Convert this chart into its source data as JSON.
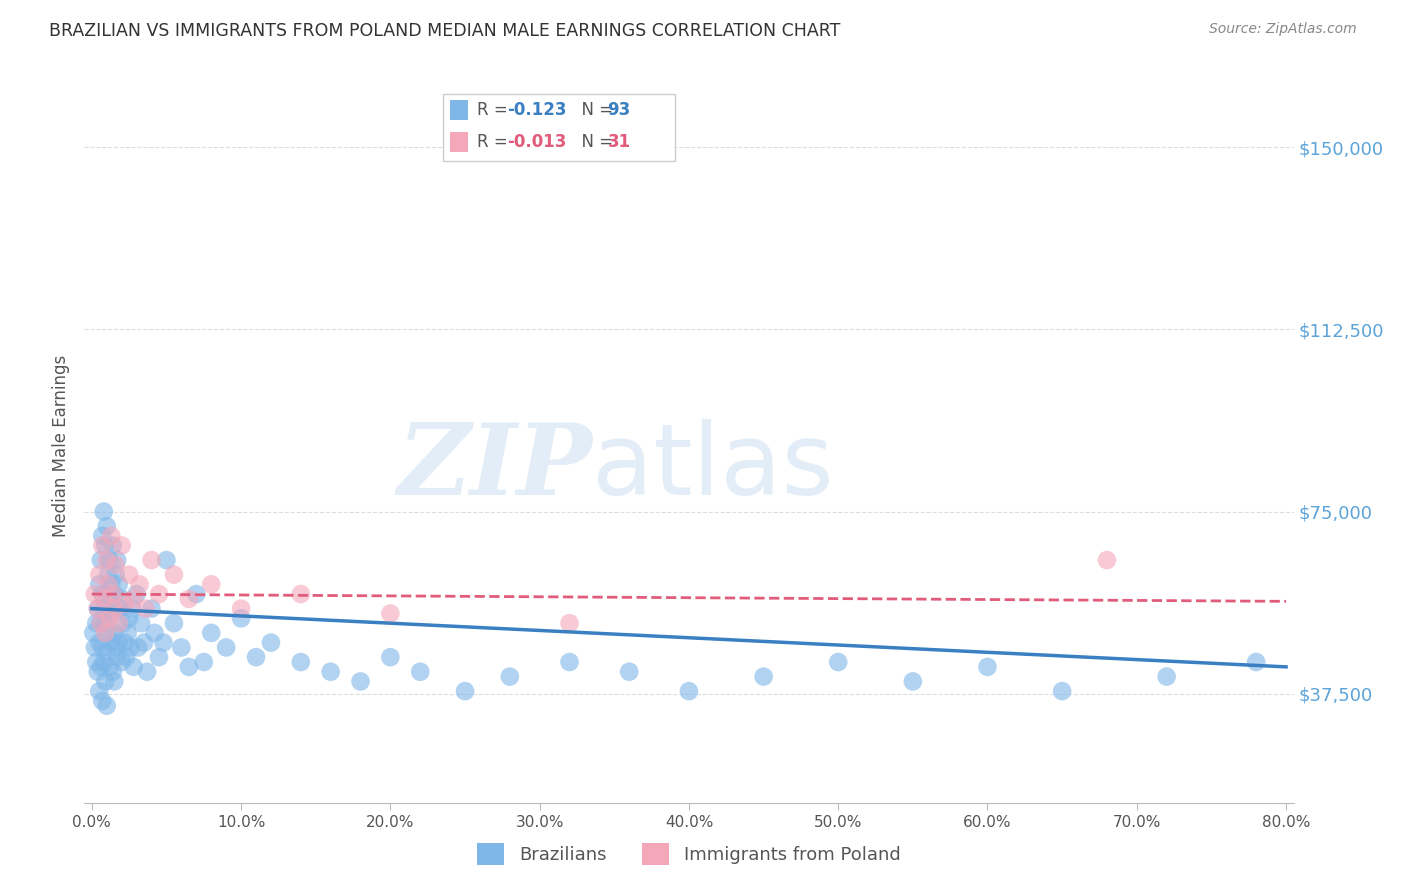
{
  "title": "BRAZILIAN VS IMMIGRANTS FROM POLAND MEDIAN MALE EARNINGS CORRELATION CHART",
  "source": "Source: ZipAtlas.com",
  "ylabel": "Median Male Earnings",
  "ytick_labels": [
    "$37,500",
    "$75,000",
    "$112,500",
    "$150,000"
  ],
  "ytick_vals": [
    37500,
    75000,
    112500,
    150000
  ],
  "ylim": [
    15000,
    162000
  ],
  "xlim": [
    -0.005,
    0.805
  ],
  "blue_color": "#7EB6E8",
  "pink_color": "#F4A7B9",
  "blue_line_color": "#3A7FC1",
  "pink_line_color": "#E05C7A",
  "legend_blue_label": "Brazilians",
  "legend_pink_label": "Immigrants from Poland",
  "r_blue": "-0.123",
  "n_blue": "93",
  "r_pink": "-0.013",
  "n_pink": "31",
  "watermark_zip": "ZIP",
  "watermark_atlas": "atlas",
  "background_color": "#FFFFFF",
  "grid_color": "#DDDDDD",
  "title_color": "#333333",
  "axis_label_color": "#555555",
  "source_color": "#888888",
  "ytick_color": "#5BA3D9",
  "xtick_color": "#555555",
  "blue_scatter_x": [
    0.001,
    0.002,
    0.003,
    0.003,
    0.004,
    0.004,
    0.005,
    0.005,
    0.005,
    0.006,
    0.006,
    0.006,
    0.007,
    0.007,
    0.007,
    0.007,
    0.008,
    0.008,
    0.008,
    0.009,
    0.009,
    0.009,
    0.01,
    0.01,
    0.01,
    0.01,
    0.011,
    0.011,
    0.012,
    0.012,
    0.012,
    0.013,
    0.013,
    0.014,
    0.014,
    0.014,
    0.015,
    0.015,
    0.015,
    0.016,
    0.016,
    0.017,
    0.017,
    0.018,
    0.018,
    0.019,
    0.02,
    0.02,
    0.021,
    0.022,
    0.023,
    0.024,
    0.025,
    0.026,
    0.027,
    0.028,
    0.03,
    0.031,
    0.033,
    0.035,
    0.037,
    0.04,
    0.042,
    0.045,
    0.048,
    0.05,
    0.055,
    0.06,
    0.065,
    0.07,
    0.075,
    0.08,
    0.09,
    0.1,
    0.11,
    0.12,
    0.14,
    0.16,
    0.18,
    0.2,
    0.22,
    0.25,
    0.28,
    0.32,
    0.36,
    0.4,
    0.45,
    0.5,
    0.55,
    0.6,
    0.65,
    0.72,
    0.78
  ],
  "blue_scatter_y": [
    50000,
    47000,
    52000,
    44000,
    55000,
    42000,
    60000,
    48000,
    38000,
    65000,
    52000,
    43000,
    70000,
    58000,
    47000,
    36000,
    75000,
    55000,
    44000,
    68000,
    52000,
    40000,
    72000,
    58000,
    46000,
    35000,
    62000,
    50000,
    65000,
    54000,
    43000,
    60000,
    48000,
    68000,
    55000,
    42000,
    58000,
    50000,
    40000,
    62000,
    47000,
    65000,
    45000,
    60000,
    48000,
    55000,
    57000,
    44000,
    52000,
    48000,
    45000,
    50000,
    53000,
    47000,
    55000,
    43000,
    58000,
    47000,
    52000,
    48000,
    42000,
    55000,
    50000,
    45000,
    48000,
    65000,
    52000,
    47000,
    43000,
    58000,
    44000,
    50000,
    47000,
    53000,
    45000,
    48000,
    44000,
    42000,
    40000,
    45000,
    42000,
    38000,
    41000,
    44000,
    42000,
    38000,
    41000,
    44000,
    40000,
    43000,
    38000,
    41000,
    44000
  ],
  "pink_scatter_x": [
    0.002,
    0.004,
    0.005,
    0.006,
    0.007,
    0.008,
    0.009,
    0.01,
    0.011,
    0.012,
    0.013,
    0.014,
    0.015,
    0.016,
    0.018,
    0.02,
    0.022,
    0.025,
    0.028,
    0.032,
    0.036,
    0.04,
    0.045,
    0.055,
    0.065,
    0.08,
    0.1,
    0.14,
    0.2,
    0.32,
    0.68
  ],
  "pink_scatter_y": [
    58000,
    55000,
    62000,
    52000,
    68000,
    57000,
    50000,
    65000,
    60000,
    53000,
    70000,
    58000,
    55000,
    64000,
    52000,
    68000,
    56000,
    62000,
    57000,
    60000,
    55000,
    65000,
    58000,
    62000,
    57000,
    60000,
    55000,
    58000,
    54000,
    52000,
    65000
  ],
  "blue_line_x0": 0.0,
  "blue_line_x1": 0.8,
  "blue_line_y0": 55000,
  "blue_line_y1": 43000,
  "pink_line_x0": 0.0,
  "pink_line_x1": 0.8,
  "pink_line_y0": 58000,
  "pink_line_y1": 56500
}
